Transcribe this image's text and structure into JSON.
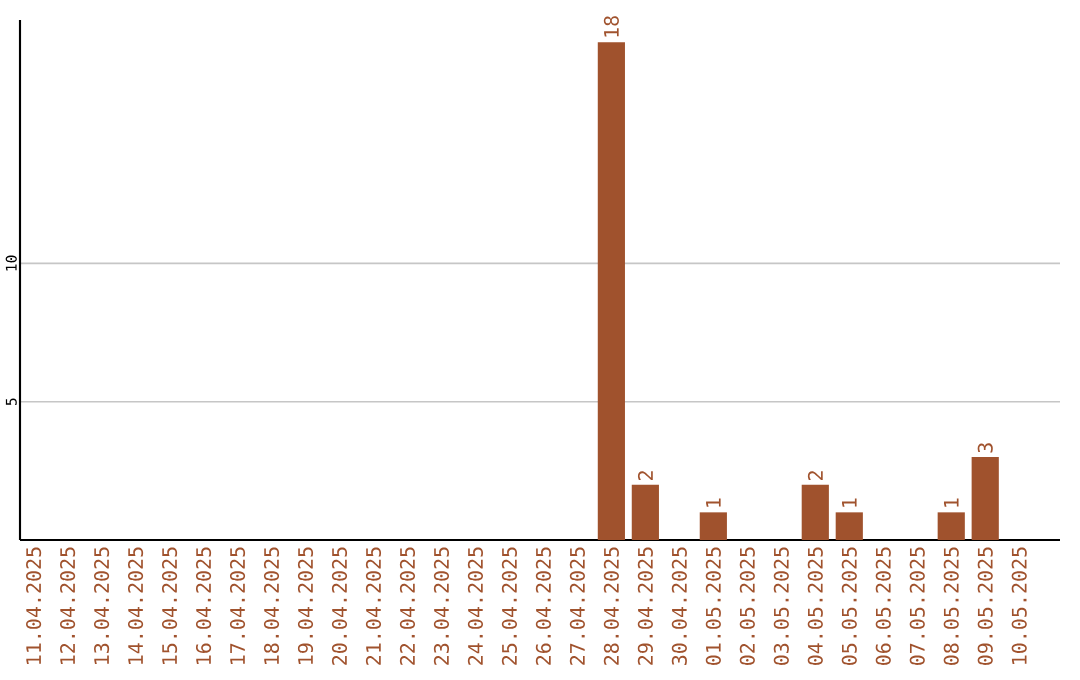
{
  "chart_data": {
    "type": "bar",
    "categories": [
      "11.04.2025",
      "12.04.2025",
      "13.04.2025",
      "14.04.2025",
      "15.04.2025",
      "16.04.2025",
      "17.04.2025",
      "18.04.2025",
      "19.04.2025",
      "20.04.2025",
      "21.04.2025",
      "22.04.2025",
      "23.04.2025",
      "24.04.2025",
      "25.04.2025",
      "26.04.2025",
      "27.04.2025",
      "28.04.2025",
      "29.04.2025",
      "30.04.2025",
      "01.05.2025",
      "02.05.2025",
      "03.05.2025",
      "04.05.2025",
      "05.05.2025",
      "06.05.2025",
      "07.05.2025",
      "08.05.2025",
      "09.05.2025",
      "10.05.2025"
    ],
    "values": [
      0,
      0,
      0,
      0,
      0,
      0,
      0,
      0,
      0,
      0,
      0,
      0,
      0,
      0,
      0,
      0,
      0,
      18,
      2,
      0,
      1,
      0,
      0,
      2,
      1,
      0,
      0,
      1,
      3,
      0
    ],
    "value_labels": [
      null,
      null,
      null,
      null,
      null,
      null,
      null,
      null,
      null,
      null,
      null,
      null,
      null,
      null,
      null,
      null,
      null,
      "18",
      "2",
      null,
      "1",
      null,
      null,
      "2",
      "1",
      null,
      null,
      "1",
      "3",
      null
    ],
    "color": "#a0522d",
    "ylim": [
      0,
      18.8
    ],
    "yticks": [
      5,
      10
    ],
    "grid": "y"
  }
}
